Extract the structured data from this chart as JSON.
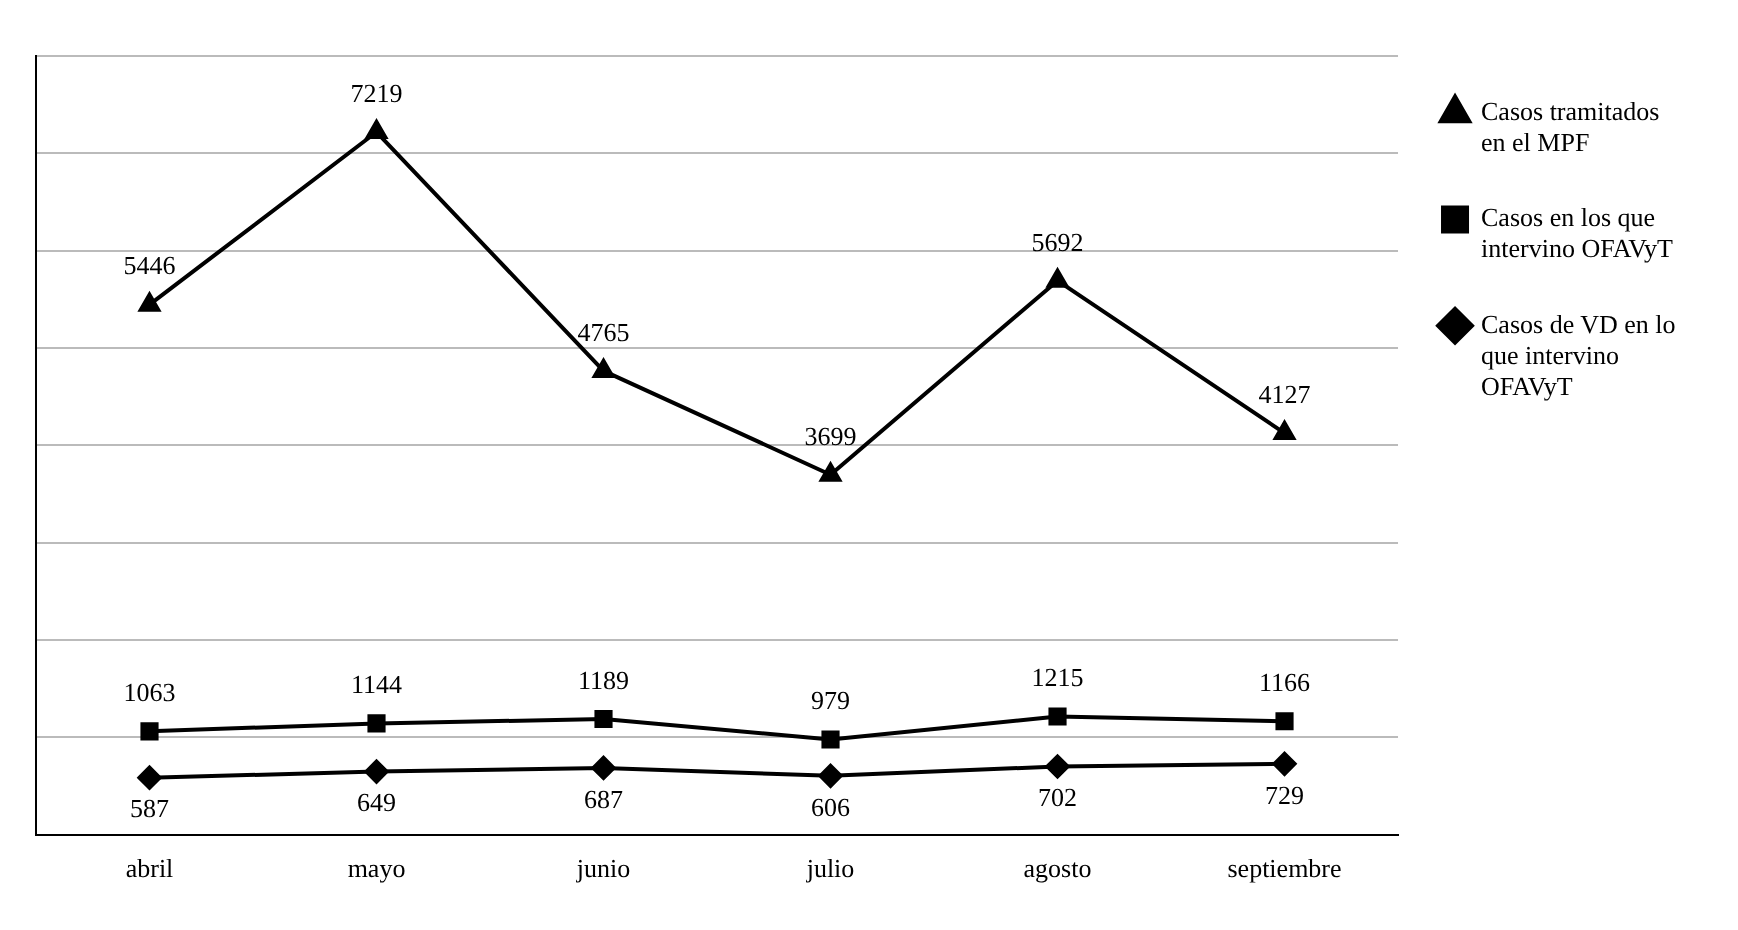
{
  "chart_data": {
    "type": "line",
    "categories": [
      "abril",
      "mayo",
      "junio",
      "julio",
      "agosto",
      "septiembre"
    ],
    "series": [
      {
        "name": "Casos tramitados en el MPF",
        "color": "#000000",
        "marker": "triangle",
        "values": [
          5446,
          7219,
          4765,
          3699,
          5692,
          4127
        ]
      },
      {
        "name": "Casos en los que intervino OFAVyT",
        "color": "#000000",
        "marker": "square",
        "values": [
          1063,
          1144,
          1189,
          979,
          1215,
          1166
        ]
      },
      {
        "name": "Casos de VD en lo que intervino OFAVyT",
        "color": "#000000",
        "marker": "diamond",
        "values": [
          587,
          649,
          687,
          606,
          702,
          729
        ]
      }
    ],
    "tick_labels": "x",
    "grid": "y",
    "legend": "right",
    "data_labels": true,
    "line_style": "solid"
  }
}
